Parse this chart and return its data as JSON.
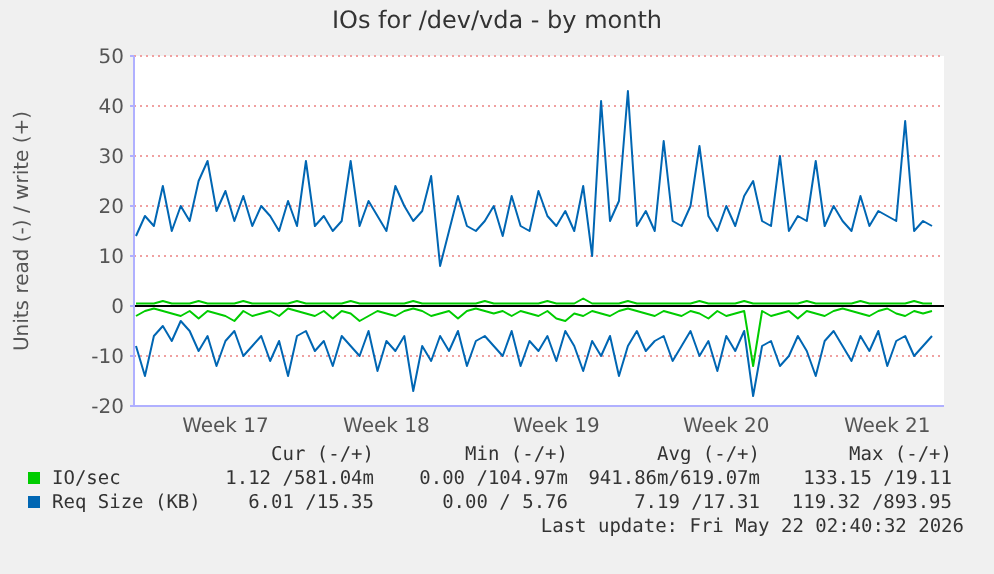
{
  "chart_data": {
    "type": "line",
    "title": "IOs for /dev/vda - by month",
    "ylabel": "Units read (-) / write (+)",
    "categories": [
      null,
      null,
      null,
      null,
      null,
      null,
      null,
      null,
      null,
      null,
      "Week 17",
      null,
      null,
      null,
      null,
      null,
      null,
      null,
      null,
      null,
      null,
      null,
      null,
      null,
      null,
      null,
      null,
      null,
      "Week 18",
      null,
      null,
      null,
      null,
      null,
      null,
      null,
      null,
      null,
      null,
      null,
      null,
      null,
      null,
      null,
      null,
      null,
      null,
      "Week 19",
      null,
      null,
      null,
      null,
      null,
      null,
      null,
      null,
      null,
      null,
      null,
      null,
      null,
      null,
      null,
      null,
      null,
      null,
      "Week 20",
      null,
      null,
      null,
      null,
      null,
      null,
      null,
      null,
      null,
      null,
      null,
      null,
      null,
      null,
      null,
      null,
      null,
      "Week 21",
      null,
      null,
      null,
      null,
      null
    ],
    "ylim": [
      -20,
      50
    ],
    "yticks": [
      -20,
      -10,
      0,
      10,
      20,
      30,
      40,
      50
    ],
    "grid": "y",
    "legend": "bottom",
    "ref_lines": [
      {
        "axis": "y",
        "value": 0,
        "label": null,
        "color": "#000000"
      }
    ],
    "series": [
      {
        "name": "IO/sec",
        "color": "#00cc00",
        "values": [
          0.5,
          0.5,
          0.5,
          1,
          0.5,
          0.5,
          0.5,
          1,
          0.5,
          0.5,
          0.5,
          0.5,
          1,
          0.5,
          0.5,
          0.5,
          0.5,
          0.5,
          1,
          0.5,
          0.5,
          0.5,
          0.5,
          0.5,
          1,
          0.5,
          0.5,
          0.5,
          0.5,
          0.5,
          0.5,
          1,
          0.5,
          0.5,
          0.5,
          0.5,
          0.5,
          0.5,
          0.5,
          1,
          0.5,
          0.5,
          0.5,
          0.5,
          0.5,
          0.5,
          1,
          0.5,
          0.5,
          0.5,
          1.5,
          0.5,
          0.5,
          0.5,
          0.5,
          1,
          0.5,
          0.5,
          0.5,
          0.5,
          0.5,
          0.5,
          0.5,
          1,
          0.5,
          0.5,
          0.5,
          0.5,
          1,
          0.5,
          0.5,
          0.5,
          0.5,
          0.5,
          0.5,
          1,
          0.5,
          0.5,
          0.5,
          0.5,
          0.5,
          1,
          0.5,
          0.5,
          0.5,
          0.5,
          0.5,
          1,
          0.5,
          0.5
        ]
      },
      {
        "color": "#00cc00",
        "values": [
          -2,
          -1,
          -0.5,
          -1,
          -1.5,
          -2,
          -1,
          -2.5,
          -1,
          -1.5,
          -2,
          -3,
          -1,
          -2,
          -1.5,
          -1,
          -2,
          -0.5,
          -1,
          -1.5,
          -2,
          -1,
          -2.5,
          -1,
          -1.5,
          -3,
          -2,
          -1,
          -1.5,
          -2,
          -1,
          -0.5,
          -1,
          -2,
          -1.5,
          -1,
          -2.5,
          -1,
          -0.5,
          -1,
          -1.5,
          -1,
          -2,
          -1,
          -1.5,
          -2,
          -1,
          -2.5,
          -3,
          -1.5,
          -2,
          -1,
          -1.5,
          -2,
          -1,
          -0.5,
          -1,
          -1.5,
          -2,
          -1,
          -1.5,
          -2,
          -1,
          -1.5,
          -2.5,
          -1,
          -2,
          -1.5,
          -1,
          -12,
          -1,
          -2,
          -1.5,
          -1,
          -2.5,
          -1,
          -1.5,
          -2,
          -1,
          -0.5,
          -1,
          -1.5,
          -2,
          -1,
          -0.5,
          -1.5,
          -2,
          -1,
          -1.5,
          -1
        ]
      },
      {
        "name": "Req Size (KB)",
        "color": "#0066b3",
        "values": [
          14,
          18,
          16,
          24,
          15,
          20,
          17,
          25,
          29,
          19,
          23,
          17,
          22,
          16,
          20,
          18,
          15,
          21,
          16,
          29,
          16,
          18,
          15,
          17,
          29,
          16,
          21,
          18,
          15,
          24,
          20,
          17,
          19,
          26,
          8,
          15,
          22,
          16,
          15,
          17,
          20,
          14,
          22,
          16,
          15,
          23,
          18,
          16,
          19,
          15,
          24,
          10,
          41,
          17,
          21,
          43,
          16,
          19,
          15,
          33,
          17,
          16,
          20,
          32,
          18,
          15,
          20,
          16,
          22,
          25,
          17,
          16,
          30,
          15,
          18,
          17,
          29,
          16,
          20,
          17,
          15,
          22,
          16,
          19,
          18,
          17,
          37,
          15,
          17,
          16
        ]
      },
      {
        "color": "#0066b3",
        "values": [
          -8,
          -14,
          -6,
          -4,
          -7,
          -3,
          -5,
          -9,
          -6,
          -12,
          -7,
          -5,
          -10,
          -8,
          -6,
          -11,
          -7,
          -14,
          -6,
          -5,
          -9,
          -7,
          -12,
          -6,
          -8,
          -10,
          -5,
          -13,
          -7,
          -9,
          -6,
          -17,
          -8,
          -11,
          -6,
          -9,
          -5,
          -12,
          -7,
          -6,
          -8,
          -10,
          -5,
          -12,
          -7,
          -9,
          -6,
          -11,
          -5,
          -8,
          -13,
          -7,
          -10,
          -6,
          -14,
          -8,
          -5,
          -9,
          -7,
          -6,
          -11,
          -8,
          -5,
          -10,
          -7,
          -13,
          -6,
          -9,
          -5,
          -18,
          -8,
          -7,
          -12,
          -10,
          -6,
          -9,
          -14,
          -7,
          -5,
          -8,
          -11,
          -6,
          -9,
          -5,
          -12,
          -7,
          -6,
          -10,
          -8,
          -6
        ]
      }
    ],
    "annotations": [
      "Cur (-/+)",
      "Min (-/+)",
      "Avg (-/+)",
      "Max (-/+)",
      "1.12 /581.04m",
      "0.00 /104.97m",
      "941.86m/619.07m",
      "133.15 /19.11",
      "6.01 /15.35",
      "0.00 / 5.76",
      "7.19 /17.31",
      "119.32 /893.95",
      "Last update: Fri May 22 02:40:32 2026"
    ]
  }
}
